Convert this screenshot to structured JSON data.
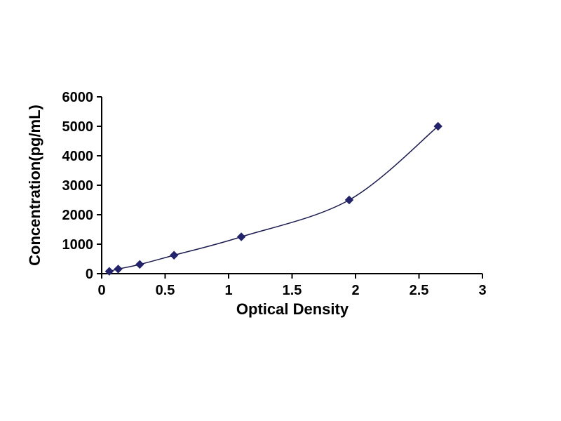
{
  "chart_data": {
    "type": "line",
    "description": "ELISA standard curve: scatter points with smooth connecting curve",
    "x": [
      0.06,
      0.13,
      0.3,
      0.57,
      1.1,
      1.95,
      2.65
    ],
    "values": [
      78.1,
      156.3,
      312.5,
      625,
      1250,
      2500,
      5000
    ],
    "title": "",
    "xlabel": "Optical Density",
    "ylabel": "Concentration(pg/mL)",
    "xlim": [
      0,
      3
    ],
    "ylim": [
      0,
      6000
    ],
    "xticks": [
      0,
      0.5,
      1,
      1.5,
      2,
      2.5,
      3
    ],
    "xtick_labels": [
      "0",
      "0.5",
      "1",
      "1.5",
      "2",
      "2.5",
      "3"
    ],
    "yticks": [
      0,
      1000,
      2000,
      3000,
      4000,
      5000,
      6000
    ],
    "ytick_labels": [
      "0",
      "1000",
      "2000",
      "3000",
      "4000",
      "5000",
      "6000"
    ],
    "grid": false,
    "legend": "none",
    "marker": "diamond",
    "marker_color": "#23236b",
    "line_color": "#1b1b4f",
    "axis_color": "#000000"
  }
}
